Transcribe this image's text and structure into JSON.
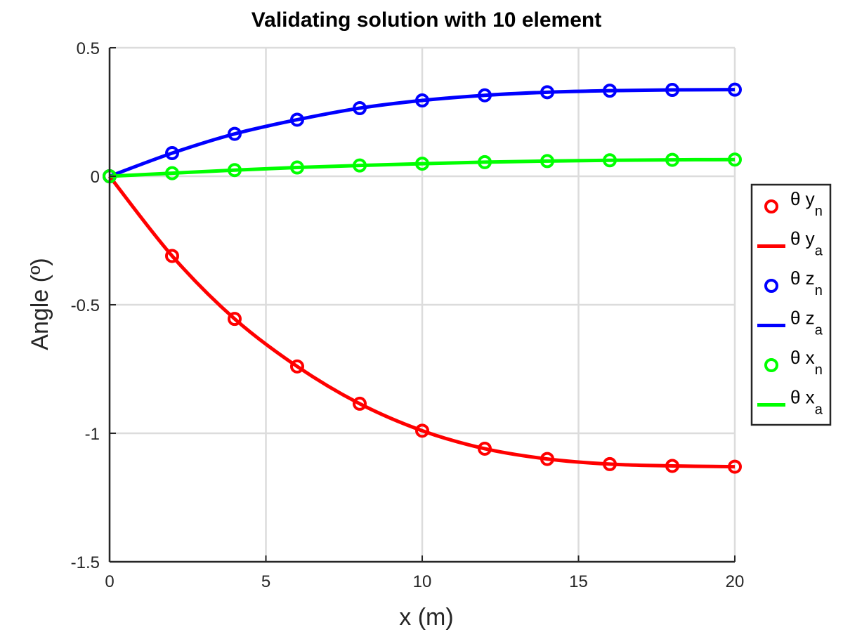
{
  "chart_data": {
    "type": "line",
    "title": "Validating solution with 10 element",
    "xlabel": "x (m)",
    "ylabel": "Angle (º)",
    "xlim": [
      0,
      20
    ],
    "ylim": [
      -1.5,
      0.5
    ],
    "xticks": [
      0,
      5,
      10,
      15,
      20
    ],
    "xtick_labels": [
      "0",
      "5",
      "10",
      "15",
      "20"
    ],
    "yticks": [
      -1.5,
      -1,
      -0.5,
      0,
      0.5
    ],
    "ytick_labels": [
      "-1.5",
      "-1",
      "-0.5",
      "0",
      "0.5"
    ],
    "grid": true,
    "legend_position": "outside-right",
    "x": [
      0,
      2,
      4,
      6,
      8,
      10,
      12,
      14,
      16,
      18,
      20
    ],
    "series": [
      {
        "name": "θ y",
        "subscript": "n",
        "marker": "circle",
        "line": false,
        "color": "#ff0000",
        "values": [
          0,
          -0.31,
          -0.555,
          -0.74,
          -0.885,
          -0.99,
          -1.06,
          -1.1,
          -1.12,
          -1.127,
          -1.13
        ]
      },
      {
        "name": "θ y",
        "subscript": "a",
        "marker": "none",
        "line": true,
        "color": "#ff0000",
        "values": [
          0,
          -0.31,
          -0.555,
          -0.74,
          -0.885,
          -0.99,
          -1.06,
          -1.1,
          -1.12,
          -1.127,
          -1.13
        ]
      },
      {
        "name": "θ z",
        "subscript": "n",
        "marker": "circle",
        "line": false,
        "color": "#0000ff",
        "values": [
          0,
          0.09,
          0.165,
          0.22,
          0.265,
          0.295,
          0.315,
          0.327,
          0.333,
          0.336,
          0.337
        ]
      },
      {
        "name": "θ z",
        "subscript": "a",
        "marker": "none",
        "line": true,
        "color": "#0000ff",
        "values": [
          0,
          0.09,
          0.165,
          0.22,
          0.265,
          0.295,
          0.315,
          0.327,
          0.333,
          0.336,
          0.337
        ]
      },
      {
        "name": "θ x",
        "subscript": "n",
        "marker": "circle",
        "line": false,
        "color": "#00ff00",
        "values": [
          0,
          0.012,
          0.024,
          0.034,
          0.042,
          0.049,
          0.055,
          0.059,
          0.062,
          0.064,
          0.065
        ]
      },
      {
        "name": "θ x",
        "subscript": "a",
        "marker": "none",
        "line": true,
        "color": "#00ff00",
        "values": [
          0,
          0.012,
          0.024,
          0.034,
          0.042,
          0.049,
          0.055,
          0.059,
          0.062,
          0.064,
          0.065
        ]
      }
    ]
  }
}
